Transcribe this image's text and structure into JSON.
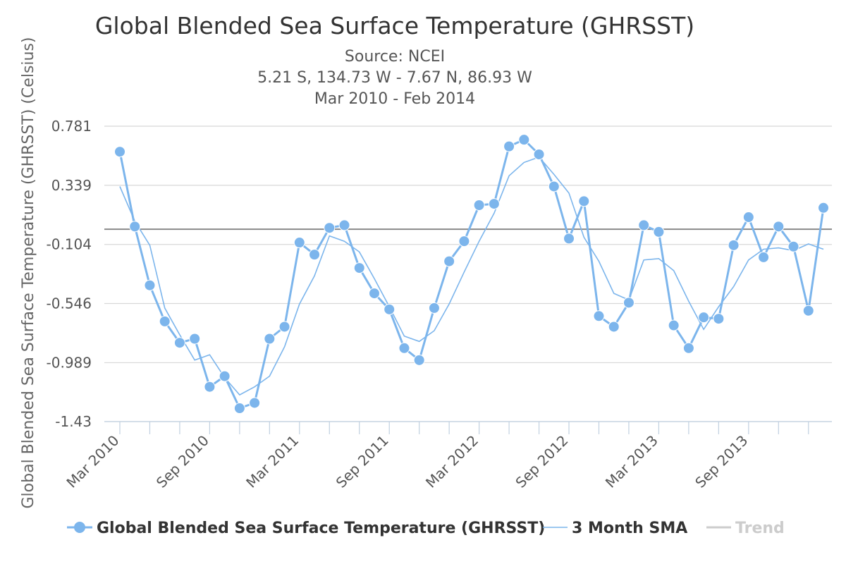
{
  "chart_data": {
    "type": "line",
    "title": "Global Blended Sea Surface Temperature (GHRSST)",
    "subtitle_lines": [
      "Source: NCEI",
      "5.21 S, 134.73 W - 7.67 N, 86.93 W",
      "Mar 2010 - Feb 2014"
    ],
    "ylabel": "Global Blended Sea Surface Temperature (GHRSST) (Celsius)",
    "xlabel": "",
    "ylim": [
      -1.43,
      0.781
    ],
    "yticks": [
      0.781,
      0.339,
      -0.104,
      -0.546,
      -0.989,
      -1.43
    ],
    "ytick_labels": [
      "0.781",
      "0.339",
      "-0.104",
      "-0.546",
      "-0.989",
      "-1.43"
    ],
    "x": [
      "Mar 2010",
      "Apr 2010",
      "May 2010",
      "Jun 2010",
      "Jul 2010",
      "Aug 2010",
      "Sep 2010",
      "Oct 2010",
      "Nov 2010",
      "Dec 2010",
      "Jan 2011",
      "Feb 2011",
      "Mar 2011",
      "Apr 2011",
      "May 2011",
      "Jun 2011",
      "Jul 2011",
      "Aug 2011",
      "Sep 2011",
      "Oct 2011",
      "Nov 2011",
      "Dec 2011",
      "Jan 2012",
      "Feb 2012",
      "Mar 2012",
      "Apr 2012",
      "May 2012",
      "Jun 2012",
      "Jul 2012",
      "Aug 2012",
      "Sep 2012",
      "Oct 2012",
      "Nov 2012",
      "Dec 2012",
      "Jan 2013",
      "Feb 2013",
      "Mar 2013",
      "Apr 2013",
      "May 2013",
      "Jun 2013",
      "Jul 2013",
      "Aug 2013",
      "Sep 2013",
      "Oct 2013",
      "Nov 2013",
      "Dec 2013",
      "Jan 2014",
      "Feb 2014"
    ],
    "xtick_labels": [
      "Mar 2010",
      "Sep 2010",
      "Mar 2011",
      "Sep 2011",
      "Mar 2012",
      "Sep 2012",
      "Mar 2013",
      "Sep 2013"
    ],
    "xtick_label_indices": [
      0,
      6,
      12,
      18,
      24,
      30,
      36,
      42
    ],
    "series": [
      {
        "name": "Global Blended Sea Surface Temperature (GHRSST)",
        "color": "#7cb5ec",
        "markers": true,
        "values": [
          0.59,
          0.03,
          -0.41,
          -0.68,
          -0.84,
          -0.81,
          -1.17,
          -1.09,
          -1.33,
          -1.29,
          -0.81,
          -0.72,
          -0.09,
          -0.18,
          0.02,
          0.04,
          -0.28,
          -0.47,
          -0.59,
          -0.88,
          -0.97,
          -0.58,
          -0.23,
          -0.08,
          0.19,
          0.2,
          0.63,
          0.68,
          0.57,
          0.33,
          -0.06,
          0.22,
          -0.64,
          -0.72,
          -0.54,
          0.04,
          -0.01,
          -0.71,
          -0.88,
          -0.65,
          -0.66,
          -0.11,
          0.1,
          -0.2,
          0.03,
          -0.12,
          -0.6,
          0.17
        ]
      },
      {
        "name": "3 Month SMA",
        "color": "#7cb5ec",
        "markers": false,
        "values": [
          0.33,
          0.07,
          -0.11,
          -0.58,
          -0.78,
          -0.97,
          -0.93,
          -1.1,
          -1.23,
          -1.17,
          -1.09,
          -0.87,
          -0.55,
          -0.34,
          -0.04,
          -0.08,
          -0.16,
          -0.36,
          -0.57,
          -0.79,
          -0.83,
          -0.75,
          -0.55,
          -0.31,
          -0.08,
          0.13,
          0.41,
          0.51,
          0.55,
          0.42,
          0.28,
          -0.05,
          -0.23,
          -0.47,
          -0.52,
          -0.22,
          -0.21,
          -0.3,
          -0.53,
          -0.74,
          -0.57,
          -0.42,
          -0.22,
          -0.14,
          -0.13,
          -0.15,
          -0.1,
          -0.14
        ]
      }
    ],
    "trend": {
      "name": "Trend",
      "value": 0.01,
      "color": "#999999",
      "visible_in_legend": false
    },
    "grid": true,
    "legend_position": "bottom-center"
  }
}
